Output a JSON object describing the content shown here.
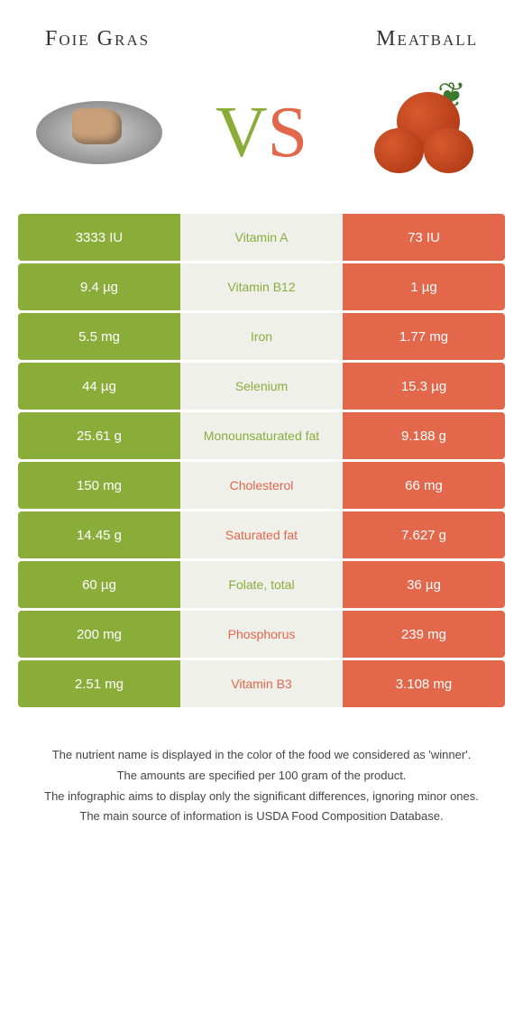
{
  "header": {
    "left_title": "Foie Gras",
    "right_title": "Meatball",
    "vs_v": "V",
    "vs_s": "S"
  },
  "colors": {
    "green": "#8aad3a",
    "orange": "#e2674b",
    "mid_bg": "#f0f0ea"
  },
  "rows": [
    {
      "left": "3333 IU",
      "label": "Vitamin A",
      "right": "73 IU",
      "winner": "left"
    },
    {
      "left": "9.4 µg",
      "label": "Vitamin B12",
      "right": "1 µg",
      "winner": "left"
    },
    {
      "left": "5.5 mg",
      "label": "Iron",
      "right": "1.77 mg",
      "winner": "left"
    },
    {
      "left": "44 µg",
      "label": "Selenium",
      "right": "15.3 µg",
      "winner": "left"
    },
    {
      "left": "25.61 g",
      "label": "Monounsaturated fat",
      "right": "9.188 g",
      "winner": "left"
    },
    {
      "left": "150 mg",
      "label": "Cholesterol",
      "right": "66 mg",
      "winner": "right"
    },
    {
      "left": "14.45 g",
      "label": "Saturated fat",
      "right": "7.627 g",
      "winner": "right"
    },
    {
      "left": "60 µg",
      "label": "Folate, total",
      "right": "36 µg",
      "winner": "left"
    },
    {
      "left": "200 mg",
      "label": "Phosphorus",
      "right": "239 mg",
      "winner": "right"
    },
    {
      "left": "2.51 mg",
      "label": "Vitamin B3",
      "right": "3.108 mg",
      "winner": "right"
    }
  ],
  "footer": {
    "line1": "The nutrient name is displayed in the color of the food we considered as 'winner'.",
    "line2": "The amounts are specified per 100 gram of the product.",
    "line3": "The infographic aims to display only the significant differences, ignoring minor ones.",
    "line4": "The main source of information is USDA Food Composition Database."
  }
}
